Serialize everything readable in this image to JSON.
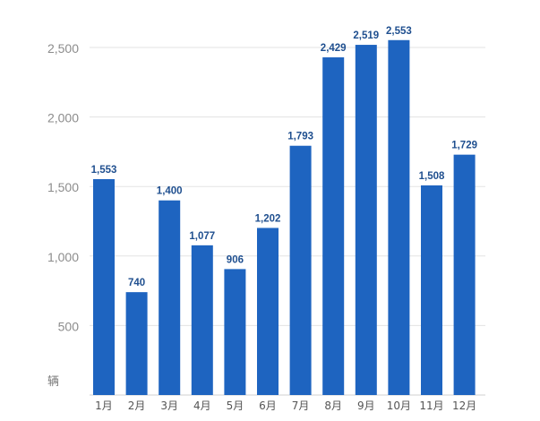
{
  "chart_data": {
    "type": "bar",
    "title": "",
    "xlabel": "",
    "ylabel": "辆",
    "categories": [
      "1月",
      "2月",
      "3月",
      "4月",
      "5月",
      "6月",
      "7月",
      "8月",
      "9月",
      "10月",
      "11月",
      "12月"
    ],
    "values": [
      1553,
      740,
      1400,
      1077,
      906,
      1202,
      1793,
      2429,
      2519,
      2553,
      1508,
      1729
    ],
    "value_labels": [
      "1,553",
      "740",
      "1,400",
      "1,077",
      "906",
      "1,202",
      "1,793",
      "2,429",
      "2,519",
      "2,553",
      "1,508",
      "1,729"
    ],
    "yticks": [
      500,
      1000,
      1500,
      2000,
      2500
    ],
    "ytick_labels": [
      "500",
      "1,000",
      "1,500",
      "2,000",
      "2,500"
    ],
    "ylim": [
      0,
      2500
    ],
    "grid": true,
    "bar_color": "#1e64c0",
    "label_color": "#1f4f8f"
  }
}
